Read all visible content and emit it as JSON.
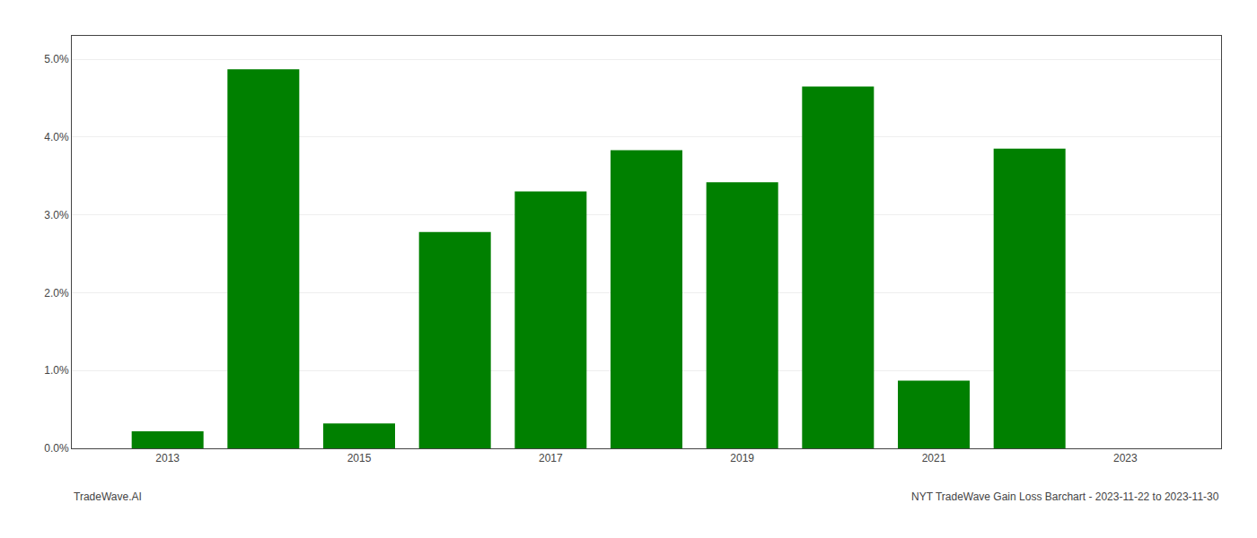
{
  "chart_data": {
    "type": "bar",
    "x": [
      2013,
      2014,
      2015,
      2016,
      2017,
      2018,
      2019,
      2020,
      2021,
      2022,
      2023
    ],
    "values": [
      0.0022,
      0.0487,
      0.0032,
      0.0278,
      0.033,
      0.0383,
      0.0342,
      0.0465,
      0.0087,
      0.0385,
      0.0
    ],
    "color": "#008000",
    "xlim": [
      2012.0,
      2024.0
    ],
    "xticks": [
      2013,
      2015,
      2017,
      2019,
      2021,
      2023
    ],
    "ylim": [
      0,
      0.053
    ],
    "yticks": [
      {
        "value": 0.0,
        "label": "0.0%"
      },
      {
        "value": 0.01,
        "label": "1.0%"
      },
      {
        "value": 0.02,
        "label": "2.0%"
      },
      {
        "value": 0.03,
        "label": "3.0%"
      },
      {
        "value": 0.04,
        "label": "4.0%"
      },
      {
        "value": 0.05,
        "label": "5.0%"
      }
    ],
    "grid": true,
    "annotations": [
      "TradeWave.AI",
      "NYT TradeWave Gain Loss Barchart - 2023-11-22 to 2023-11-30"
    ]
  }
}
